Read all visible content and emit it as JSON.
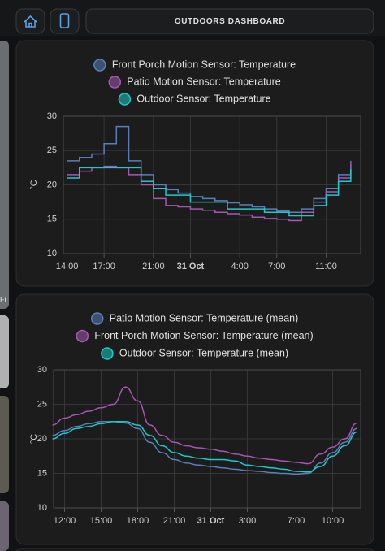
{
  "header": {
    "title": "OUTDOORS DASHBOARD",
    "side_text": "Fi"
  },
  "chart_data": [
    {
      "type": "line",
      "step": true,
      "ylabel": "°C",
      "grid": true,
      "x": [
        14,
        15,
        16,
        17,
        18,
        19,
        20,
        21,
        22,
        23,
        24,
        25,
        26,
        27,
        28,
        29,
        30,
        31,
        32,
        33,
        34,
        35,
        36,
        37
      ],
      "xlim": [
        13.7,
        37.8
      ],
      "xticks": [
        {
          "value": 14,
          "label": "14:00"
        },
        {
          "value": 17,
          "label": "17:00"
        },
        {
          "value": 21,
          "label": "21:00"
        },
        {
          "value": 24,
          "label": "31 Oct"
        },
        {
          "value": 28,
          "label": "4:00"
        },
        {
          "value": 31,
          "label": "7:00"
        },
        {
          "value": 35,
          "label": "11:00"
        }
      ],
      "ylim": [
        10,
        30
      ],
      "yticks": [
        10,
        15,
        20,
        25,
        30
      ],
      "series": [
        {
          "name": "Front Porch Motion Sensor: Temperature",
          "color": "#5a7fb8",
          "values": [
            23.5,
            24,
            24.5,
            26,
            28.5,
            23.5,
            21.5,
            20,
            19.3,
            18.8,
            18.3,
            18,
            17.7,
            17.4,
            17.1,
            16.8,
            16.5,
            16.2,
            16,
            16.5,
            18,
            19.5,
            21.5,
            23.5
          ]
        },
        {
          "name": "Patio Motion Sensor: Temperature",
          "color": "#a458b0",
          "values": [
            21.5,
            22,
            22.5,
            22.7,
            22.5,
            21.5,
            20,
            18,
            17,
            16.8,
            16.5,
            16.3,
            16,
            15.8,
            15.6,
            15.3,
            15.1,
            15,
            14.8,
            16,
            17.5,
            19,
            21,
            23
          ]
        },
        {
          "name": "Outdoor Sensor: Temperature",
          "color": "#1fc9c9",
          "values": [
            21,
            22.5,
            22.5,
            22.5,
            22.5,
            22.5,
            20.5,
            19.5,
            18.5,
            18.5,
            17.5,
            17.5,
            17.5,
            16.5,
            16.5,
            16.5,
            16,
            16,
            15.5,
            15.5,
            17,
            18.5,
            20.5,
            22.3
          ]
        }
      ]
    },
    {
      "type": "line",
      "step": false,
      "ylabel": "°C",
      "grid": true,
      "x": [
        11,
        12,
        13,
        14,
        15,
        16,
        17,
        18,
        19,
        20,
        21,
        22,
        23,
        24,
        25,
        26,
        27,
        28,
        29,
        30,
        31,
        32,
        33,
        34,
        35,
        36
      ],
      "xlim": [
        11.1,
        36.3
      ],
      "xticks": [
        {
          "value": 12,
          "label": "12:00"
        },
        {
          "value": 15,
          "label": "15:00"
        },
        {
          "value": 18,
          "label": "18:00"
        },
        {
          "value": 21,
          "label": "21:00"
        },
        {
          "value": 24,
          "label": "31 Oct"
        },
        {
          "value": 27,
          "label": "3:00"
        },
        {
          "value": 31,
          "label": "7:00"
        },
        {
          "value": 34,
          "label": "10:00"
        }
      ],
      "ylim": [
        10,
        30
      ],
      "yticks": [
        10,
        15,
        20,
        25,
        30
      ],
      "series": [
        {
          "name": "Patio Motion Sensor: Temperature (mean)",
          "color": "#5a7fb8",
          "values": [
            20.5,
            21.2,
            21.8,
            22.2,
            22.5,
            22.5,
            22.3,
            21.5,
            19.5,
            18,
            17,
            16.5,
            16.2,
            16,
            15.8,
            15.6,
            15.4,
            15.3,
            15.1,
            15,
            14.9,
            15,
            16.5,
            18,
            19.5,
            21.5
          ]
        },
        {
          "name": "Front Porch Motion Sensor: Temperature (mean)",
          "color": "#a458b0",
          "values": [
            22,
            23,
            23.5,
            24,
            24.5,
            25,
            27.5,
            25.5,
            22,
            20.5,
            19.5,
            19,
            18.7,
            18.5,
            18.2,
            17.8,
            17.5,
            17.2,
            17,
            16.8,
            16.6,
            16.4,
            17.8,
            18.8,
            20,
            22.3
          ]
        },
        {
          "name": "Outdoor Sensor: Temperature (mean)",
          "color": "#1fc9c9",
          "values": [
            20,
            20.8,
            21.5,
            21.8,
            22.2,
            22.5,
            22.5,
            22,
            20.5,
            19,
            18,
            17.5,
            17.2,
            17,
            17,
            16.8,
            16.2,
            16,
            15.8,
            15.6,
            15.3,
            15.2,
            16,
            17.5,
            19,
            21
          ]
        }
      ]
    }
  ]
}
